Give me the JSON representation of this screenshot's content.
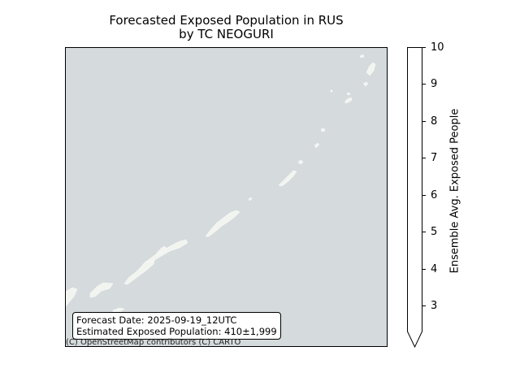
{
  "title": {
    "line1": "Forecasted Exposed Population in RUS",
    "line2": "by TC NEOGURI"
  },
  "map": {
    "background_color": "#d5dadc",
    "land_color": "#f2f4f0",
    "attribution": "(C) OpenStreetMap contributors (C) CARTO",
    "info_box": {
      "forecast_date": "Forecast Date: 2025-09-19_12UTC",
      "exposed_population": "Estimated Exposed Population: 410±1,999"
    }
  },
  "colorbar": {
    "label": "Ensemble Avg. Exposed People",
    "ticks": [
      "3",
      "4",
      "5",
      "6",
      "7",
      "8",
      "9",
      "10"
    ],
    "range": [
      2.3,
      10
    ],
    "extend": "min",
    "color": "#ffffff"
  }
}
